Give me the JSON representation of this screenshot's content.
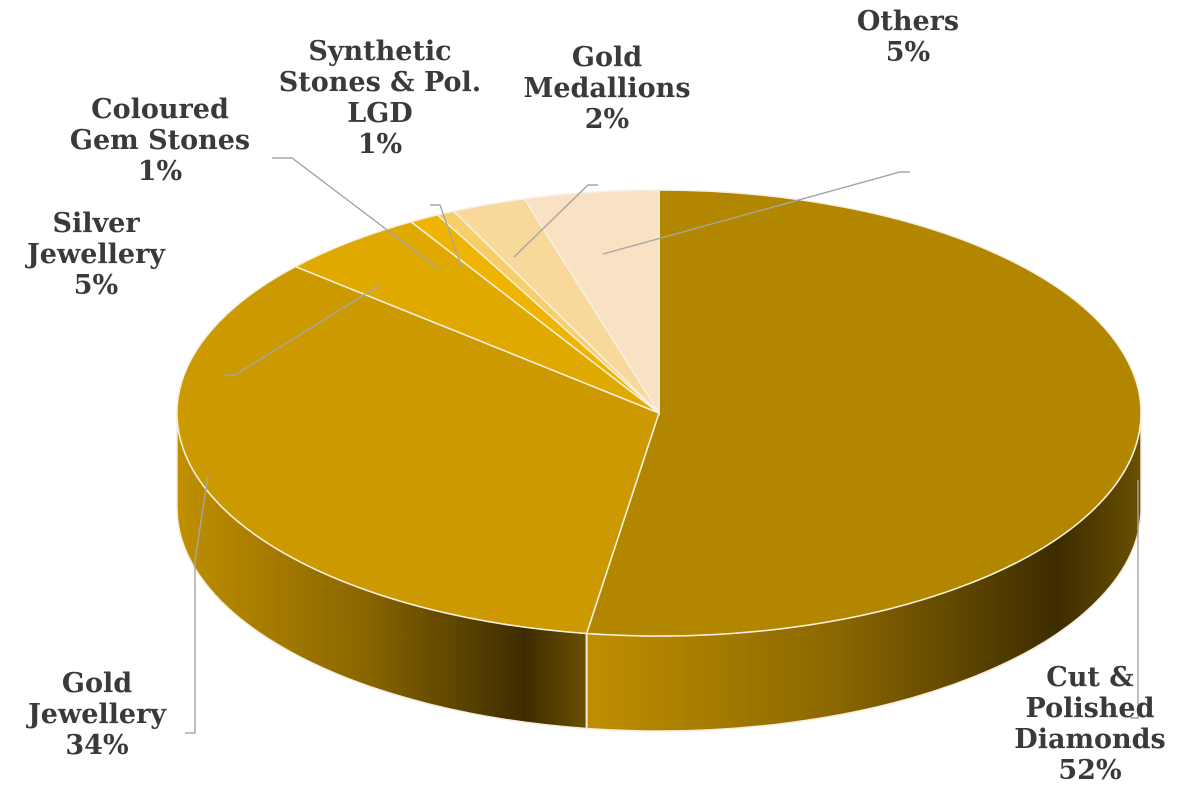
{
  "chart_data": {
    "type": "pie",
    "style": "3d",
    "start": "12 o'clock, clockwise",
    "slices": [
      {
        "name": "Cut & Polished Diamonds",
        "lines": [
          "Cut &",
          "Polished",
          "Diamonds"
        ],
        "pct_label": "52%",
        "value": 52.4,
        "color": "#b38600"
      },
      {
        "name": "Gold Jewellery",
        "lines": [
          "Gold",
          "Jewellery"
        ],
        "pct_label": "34%",
        "value": 34.0,
        "color": "#cc9a00"
      },
      {
        "name": "Silver Jewellery",
        "lines": [
          "Silver",
          "Jewellery"
        ],
        "pct_label": "5%",
        "value": 5.0,
        "color": "#e0a900"
      },
      {
        "name": "Coloured Gem Stones",
        "lines": [
          "Coloured",
          "Gem Stones"
        ],
        "pct_label": "1%",
        "value": 1.0,
        "color": "#f0b400"
      },
      {
        "name": "Synthetic Stones & Pol. LGD",
        "lines": [
          "Synthetic",
          "Stones & Pol.",
          "LGD"
        ],
        "pct_label": "1%",
        "value": 0.6,
        "color": "#f7cf6a"
      },
      {
        "name": "Gold Medallions",
        "lines": [
          "Gold",
          "Medallions"
        ],
        "pct_label": "2%",
        "value": 2.5,
        "color": "#f9d89c"
      },
      {
        "name": "Others",
        "lines": [
          "Others"
        ],
        "pct_label": "5%",
        "value": 4.5,
        "color": "#f9e1c3"
      }
    ]
  }
}
